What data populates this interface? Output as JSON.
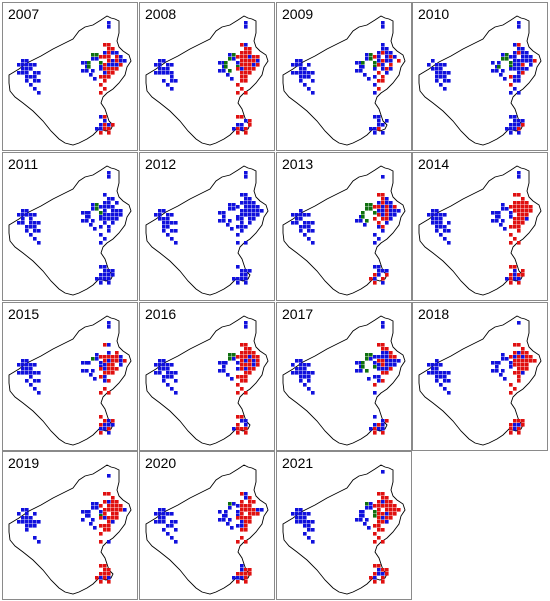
{
  "colors": {
    "blue": "#1010dd",
    "red": "#e01010",
    "green": "#107010",
    "outline": "#000000"
  },
  "chart_data": {
    "type": "map-small-multiples",
    "panels": [
      {
        "year": "2007",
        "red_share": 0.55,
        "green_share": 0.22
      },
      {
        "year": "2008",
        "red_share": 0.85,
        "green_share": 0.14
      },
      {
        "year": "2009",
        "red_share": 0.35,
        "green_share": 0.25
      },
      {
        "year": "2010",
        "red_share": 0.05,
        "green_share": 0.2
      },
      {
        "year": "2011",
        "red_share": 0.0,
        "green_share": 0.12
      },
      {
        "year": "2012",
        "red_share": 0.0,
        "green_share": 0.05
      },
      {
        "year": "2013",
        "red_share": 0.5,
        "green_share": 0.3
      },
      {
        "year": "2014",
        "red_share": 0.95,
        "green_share": 0.06
      },
      {
        "year": "2015",
        "red_share": 0.7,
        "green_share": 0.05
      },
      {
        "year": "2016",
        "red_share": 0.8,
        "green_share": 0.2
      },
      {
        "year": "2017",
        "red_share": 0.45,
        "green_share": 0.28
      },
      {
        "year": "2018",
        "red_share": 0.9,
        "green_share": 0.1
      },
      {
        "year": "2019",
        "red_share": 0.9,
        "green_share": 0.05
      },
      {
        "year": "2020",
        "red_share": 0.9,
        "green_share": 0.04
      },
      {
        "year": "2021",
        "red_share": 0.88,
        "green_share": 0.04
      }
    ]
  }
}
